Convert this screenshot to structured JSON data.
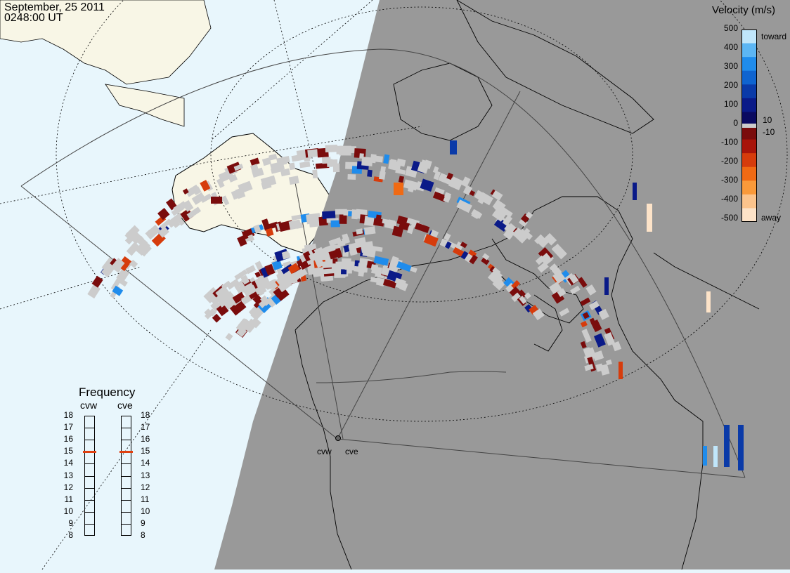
{
  "header": {
    "date": "September, 25 2011",
    "time": "0248:00 UT"
  },
  "colors": {
    "ocean": "#e8f6fc",
    "land_day": "#f8f6e6",
    "night": "#999999",
    "ground_scatter": "#cccccc"
  },
  "legend": {
    "title": "Velocity (m/s)",
    "ticks": [
      "500",
      "400",
      "300",
      "200",
      "100",
      "0",
      "-100",
      "-200",
      "-300",
      "-400",
      "-500"
    ],
    "side_labels": [
      "toward",
      "10",
      "-10",
      "away"
    ],
    "palette": [
      "#fde3c8",
      "#fcc48c",
      "#fa9a3a",
      "#f06a14",
      "#d63c0c",
      "#a8140a",
      "#7a0c0c",
      "#0a0a60",
      "#0a1a88",
      "#0a3aa8",
      "#0f64d0",
      "#1f8cec",
      "#5cb6f4",
      "#c0e6fb"
    ]
  },
  "frequency": {
    "title": "Frequency",
    "radars": [
      "cvw",
      "cve"
    ],
    "ticks": [
      "18",
      "17",
      "16",
      "15",
      "14",
      "13",
      "12",
      "11",
      "10",
      "9",
      "8"
    ],
    "marker": "15"
  },
  "map_labels": {
    "cvw": "cvw",
    "cve": "cve"
  }
}
